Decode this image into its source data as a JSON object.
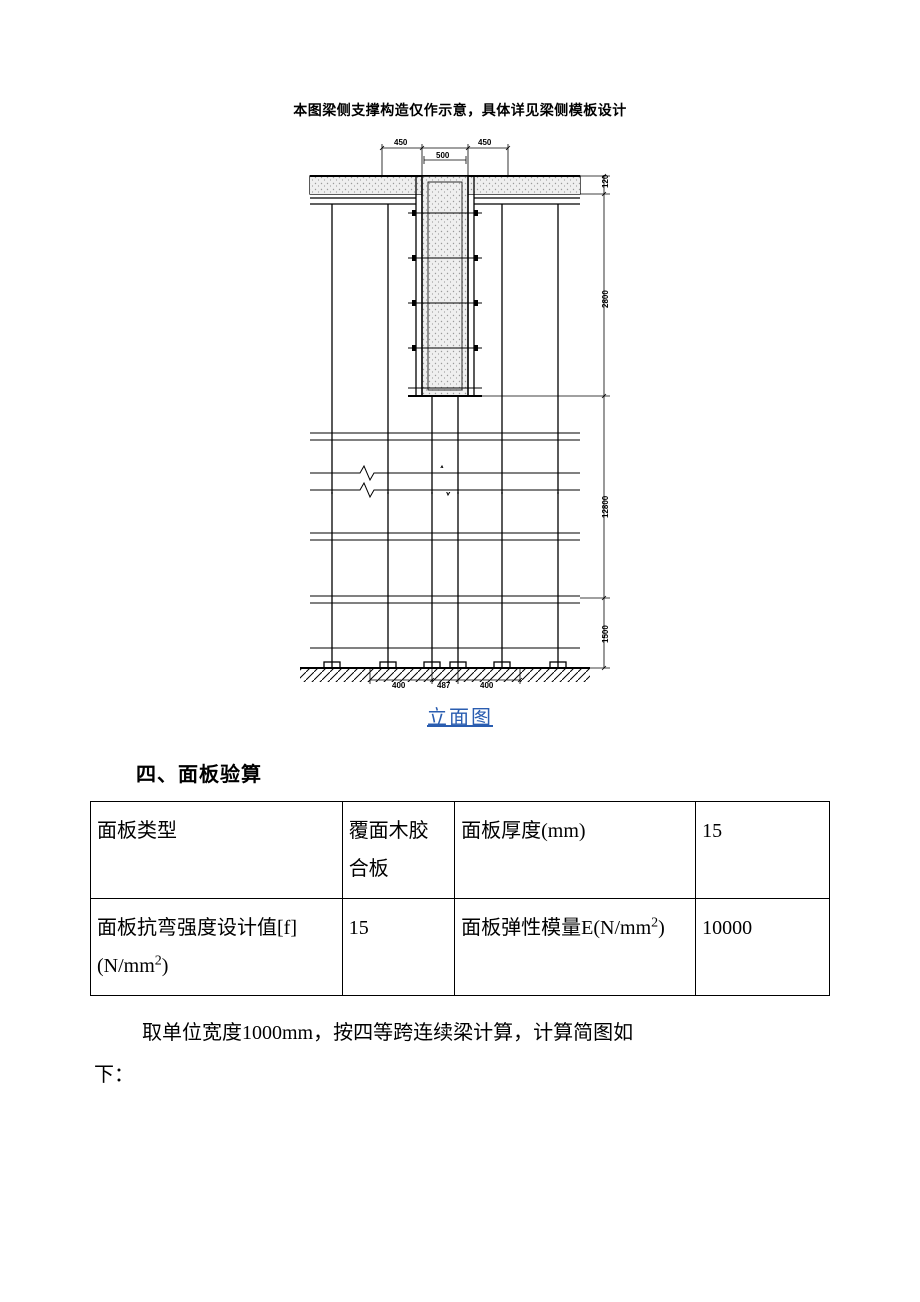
{
  "diagram": {
    "caption_top": "本图梁侧支撑构造仅作示意，具体详见梁侧模板设计",
    "link_label": "立面图",
    "top_dims": [
      "450",
      "450",
      "500"
    ],
    "right_dims_top_to_bottom": [
      "120",
      "2800",
      "12800",
      "1500"
    ],
    "bottom_dims": [
      "400",
      "487",
      "400"
    ],
    "colors": {
      "line": "#000000",
      "concrete_fill": "#efefef",
      "concrete_dots": "#9a9a9a",
      "hatch": "#000000"
    },
    "stroke_thin": 0.8,
    "stroke_med": 1.3,
    "stroke_bold": 2.0
  },
  "section4": {
    "heading": "四、面板验算",
    "table": {
      "rows": [
        {
          "label1": "面板类型",
          "val1": "覆面木胶合板",
          "label2": "面板厚度(mm)",
          "val2": "15"
        },
        {
          "label1_html": "面板抗弯强度设计值[f](N/mm<sup>2</sup>)",
          "val1": "15",
          "label2_html": "面板弹性模量E(N/mm<sup>2</sup>)",
          "val2": "10000"
        }
      ]
    },
    "paragraph_line1": "取单位宽度1000mm，按四等跨连续梁计算，计算简图如",
    "paragraph_line2": "下："
  }
}
